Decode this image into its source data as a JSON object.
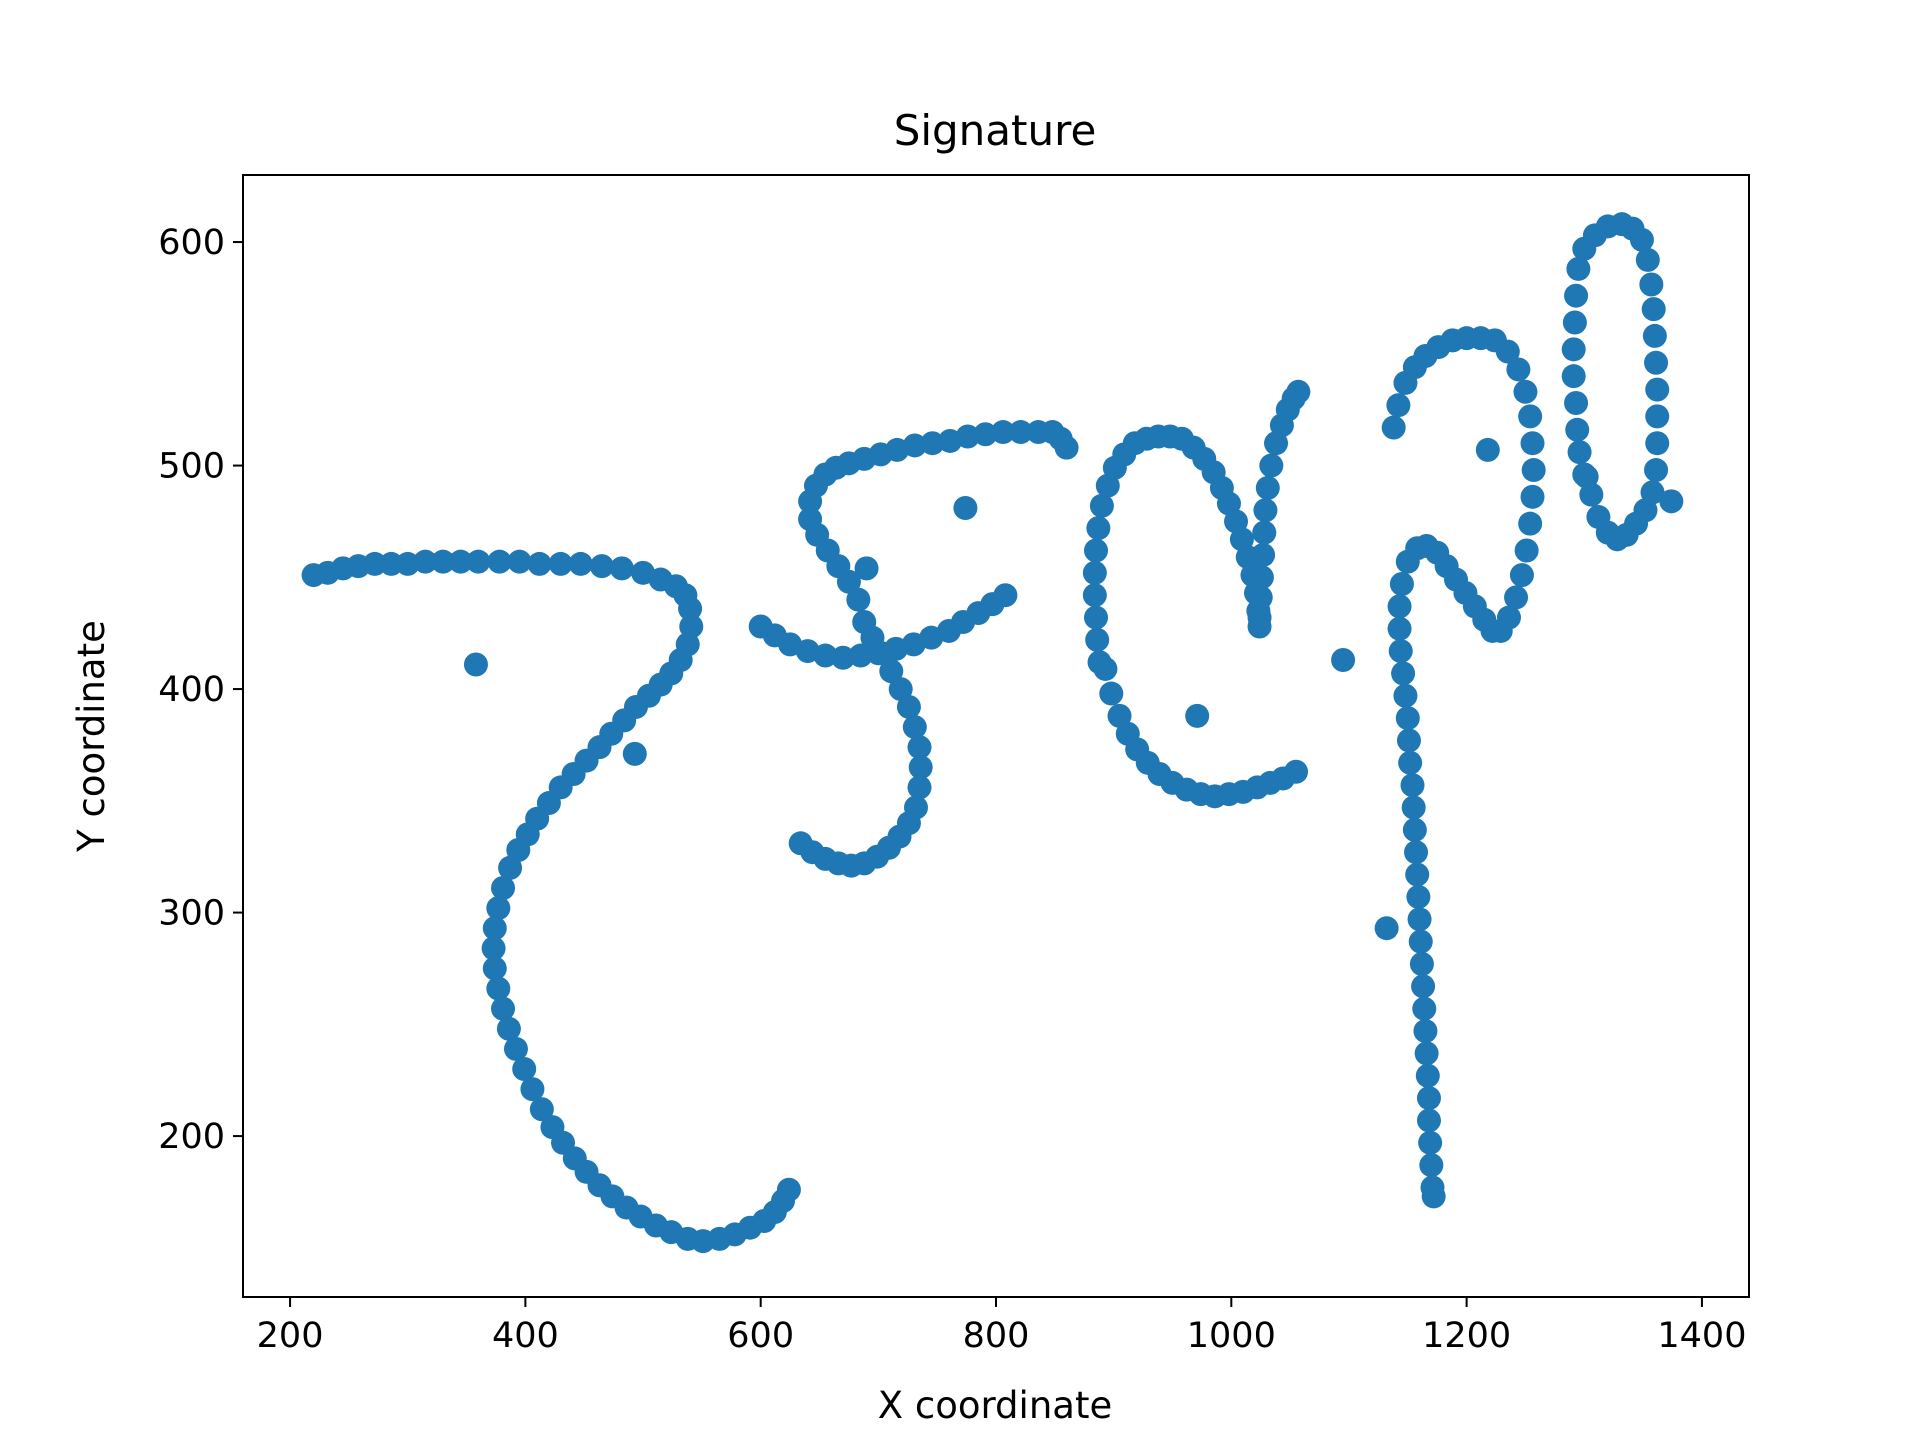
{
  "chart_data": {
    "type": "scatter",
    "title": "Signature",
    "xlabel": "X coordinate",
    "ylabel": "Y coordinate",
    "xlim": [
      160,
      1440
    ],
    "ylim": [
      128,
      630
    ],
    "xticks": [
      200,
      400,
      600,
      800,
      1000,
      1200,
      1400
    ],
    "yticks": [
      200,
      300,
      400,
      500,
      600
    ],
    "grid": false,
    "legend": "none",
    "color": "#1f77b4",
    "series": [
      {
        "points": [
          [
            220,
            451
          ],
          [
            232,
            452
          ],
          [
            245,
            454
          ],
          [
            258,
            455
          ],
          [
            272,
            456
          ],
          [
            286,
            456
          ],
          [
            300,
            456
          ],
          [
            315,
            457
          ],
          [
            330,
            457
          ],
          [
            345,
            457
          ],
          [
            360,
            457
          ],
          [
            378,
            457
          ],
          [
            395,
            457
          ],
          [
            412,
            456
          ],
          [
            430,
            456
          ],
          [
            447,
            456
          ],
          [
            465,
            455
          ],
          [
            482,
            454
          ],
          [
            500,
            452
          ],
          [
            515,
            449
          ],
          [
            528,
            446
          ],
          [
            536,
            442
          ],
          [
            540,
            436
          ],
          [
            541,
            428
          ],
          [
            538,
            420
          ],
          [
            532,
            413
          ],
          [
            524,
            407
          ],
          [
            515,
            402
          ],
          [
            505,
            397
          ],
          [
            494,
            392
          ],
          [
            484,
            386
          ],
          [
            473,
            380
          ],
          [
            463,
            374
          ],
          [
            452,
            368
          ],
          [
            441,
            362
          ],
          [
            430,
            356
          ],
          [
            420,
            349
          ],
          [
            410,
            342
          ],
          [
            402,
            335
          ],
          [
            394,
            328
          ],
          [
            387,
            320
          ],
          [
            381,
            311
          ],
          [
            377,
            302
          ],
          [
            374,
            293
          ],
          [
            373,
            284
          ],
          [
            374,
            275
          ],
          [
            377,
            266
          ],
          [
            381,
            257
          ],
          [
            386,
            248
          ],
          [
            392,
            239
          ],
          [
            399,
            230
          ],
          [
            406,
            221
          ],
          [
            414,
            212
          ],
          [
            423,
            204
          ],
          [
            432,
            197
          ],
          [
            442,
            190
          ],
          [
            452,
            184
          ],
          [
            463,
            178
          ],
          [
            474,
            173
          ],
          [
            486,
            168
          ],
          [
            498,
            164
          ],
          [
            511,
            160
          ],
          [
            524,
            157
          ],
          [
            538,
            154
          ],
          [
            551,
            153
          ],
          [
            565,
            154
          ],
          [
            578,
            156
          ],
          [
            591,
            159
          ],
          [
            603,
            162
          ],
          [
            612,
            166
          ],
          [
            619,
            171
          ],
          [
            624,
            176
          ],
          [
            358,
            411
          ],
          [
            493,
            371
          ],
          [
            600,
            428
          ],
          [
            612,
            424
          ],
          [
            625,
            420
          ],
          [
            640,
            417
          ],
          [
            655,
            415
          ],
          [
            670,
            414
          ],
          [
            685,
            415
          ],
          [
            700,
            416
          ],
          [
            715,
            418
          ],
          [
            730,
            420
          ],
          [
            745,
            423
          ],
          [
            760,
            426
          ],
          [
            772,
            430
          ],
          [
            785,
            434
          ],
          [
            797,
            438
          ],
          [
            808,
            442
          ],
          [
            688,
            430
          ],
          [
            695,
            423
          ],
          [
            703,
            416
          ],
          [
            711,
            408
          ],
          [
            719,
            400
          ],
          [
            726,
            392
          ],
          [
            731,
            383
          ],
          [
            735,
            374
          ],
          [
            736,
            365
          ],
          [
            735,
            356
          ],
          [
            732,
            347
          ],
          [
            726,
            340
          ],
          [
            718,
            334
          ],
          [
            709,
            329
          ],
          [
            699,
            325
          ],
          [
            688,
            322
          ],
          [
            677,
            321
          ],
          [
            666,
            322
          ],
          [
            655,
            324
          ],
          [
            644,
            327
          ],
          [
            634,
            331
          ],
          [
            690,
            454
          ],
          [
            774,
            481
          ],
          [
            683,
            440
          ],
          [
            675,
            448
          ],
          [
            666,
            455
          ],
          [
            657,
            462
          ],
          [
            648,
            469
          ],
          [
            642,
            476
          ],
          [
            642,
            484
          ],
          [
            647,
            491
          ],
          [
            655,
            496
          ],
          [
            664,
            499
          ],
          [
            675,
            501
          ],
          [
            688,
            503
          ],
          [
            702,
            505
          ],
          [
            716,
            507
          ],
          [
            731,
            509
          ],
          [
            746,
            510
          ],
          [
            761,
            511
          ],
          [
            776,
            513
          ],
          [
            791,
            514
          ],
          [
            806,
            515
          ],
          [
            821,
            515
          ],
          [
            836,
            515
          ],
          [
            848,
            515
          ],
          [
            855,
            512
          ],
          [
            860,
            508
          ],
          [
            888,
            412
          ],
          [
            886,
            422
          ],
          [
            885,
            432
          ],
          [
            884,
            442
          ],
          [
            884,
            452
          ],
          [
            885,
            462
          ],
          [
            887,
            472
          ],
          [
            890,
            482
          ],
          [
            895,
            491
          ],
          [
            901,
            499
          ],
          [
            909,
            505
          ],
          [
            918,
            510
          ],
          [
            928,
            512
          ],
          [
            938,
            513
          ],
          [
            948,
            513
          ],
          [
            958,
            512
          ],
          [
            968,
            508
          ],
          [
            977,
            503
          ],
          [
            985,
            497
          ],
          [
            992,
            490
          ],
          [
            998,
            483
          ],
          [
            1004,
            475
          ],
          [
            1009,
            467
          ],
          [
            1014,
            459
          ],
          [
            1018,
            451
          ],
          [
            1021,
            443
          ],
          [
            1023,
            435
          ],
          [
            1024,
            428
          ],
          [
            1024,
            432
          ],
          [
            1025,
            441
          ],
          [
            1026,
            450
          ],
          [
            1027,
            460
          ],
          [
            1028,
            470
          ],
          [
            1029,
            480
          ],
          [
            1031,
            490
          ],
          [
            1034,
            500
          ],
          [
            1038,
            510
          ],
          [
            1043,
            518
          ],
          [
            1048,
            525
          ],
          [
            1053,
            530
          ],
          [
            1057,
            533
          ],
          [
            893,
            409
          ],
          [
            898,
            398
          ],
          [
            905,
            388
          ],
          [
            912,
            380
          ],
          [
            920,
            373
          ],
          [
            929,
            367
          ],
          [
            939,
            362
          ],
          [
            950,
            358
          ],
          [
            962,
            355
          ],
          [
            974,
            353
          ],
          [
            986,
            352
          ],
          [
            998,
            353
          ],
          [
            1010,
            354
          ],
          [
            1022,
            356
          ],
          [
            1033,
            358
          ],
          [
            1044,
            360
          ],
          [
            1055,
            363
          ],
          [
            971,
            388
          ],
          [
            1095,
            413
          ],
          [
            1132,
            293
          ],
          [
            1218,
            507
          ],
          [
            1138,
            517
          ],
          [
            1142,
            527
          ],
          [
            1148,
            537
          ],
          [
            1156,
            544
          ],
          [
            1165,
            549
          ],
          [
            1176,
            553
          ],
          [
            1188,
            556
          ],
          [
            1200,
            557
          ],
          [
            1212,
            557
          ],
          [
            1224,
            556
          ],
          [
            1235,
            551
          ],
          [
            1244,
            543
          ],
          [
            1250,
            533
          ],
          [
            1254,
            522
          ],
          [
            1256,
            510
          ],
          [
            1257,
            498
          ],
          [
            1256,
            486
          ],
          [
            1254,
            474
          ],
          [
            1251,
            462
          ],
          [
            1247,
            451
          ],
          [
            1242,
            441
          ],
          [
            1236,
            432
          ],
          [
            1229,
            426
          ],
          [
            1222,
            426
          ],
          [
            1215,
            431
          ],
          [
            1207,
            437
          ],
          [
            1199,
            443
          ],
          [
            1191,
            449
          ],
          [
            1183,
            455
          ],
          [
            1175,
            461
          ],
          [
            1166,
            464
          ],
          [
            1158,
            463
          ],
          [
            1150,
            457
          ],
          [
            1145,
            447
          ],
          [
            1143,
            437
          ],
          [
            1143,
            427
          ],
          [
            1144,
            417
          ],
          [
            1146,
            407
          ],
          [
            1148,
            397
          ],
          [
            1150,
            387
          ],
          [
            1151,
            377
          ],
          [
            1152,
            367
          ],
          [
            1154,
            357
          ],
          [
            1155,
            347
          ],
          [
            1156,
            337
          ],
          [
            1157,
            327
          ],
          [
            1158,
            317
          ],
          [
            1159,
            307
          ],
          [
            1160,
            297
          ],
          [
            1161,
            287
          ],
          [
            1162,
            277
          ],
          [
            1163,
            267
          ],
          [
            1164,
            257
          ],
          [
            1165,
            247
          ],
          [
            1166,
            237
          ],
          [
            1167,
            227
          ],
          [
            1168,
            217
          ],
          [
            1168,
            207
          ],
          [
            1169,
            197
          ],
          [
            1170,
            187
          ],
          [
            1171,
            177
          ],
          [
            1172,
            173
          ],
          [
            1300,
            496
          ],
          [
            1296,
            506
          ],
          [
            1294,
            516
          ],
          [
            1293,
            528
          ],
          [
            1291,
            540
          ],
          [
            1291,
            552
          ],
          [
            1292,
            564
          ],
          [
            1293,
            576
          ],
          [
            1295,
            588
          ],
          [
            1300,
            597
          ],
          [
            1309,
            603
          ],
          [
            1320,
            607
          ],
          [
            1332,
            608
          ],
          [
            1341,
            606
          ],
          [
            1349,
            601
          ],
          [
            1354,
            592
          ],
          [
            1357,
            581
          ],
          [
            1359,
            570
          ],
          [
            1360,
            558
          ],
          [
            1361,
            546
          ],
          [
            1362,
            534
          ],
          [
            1362,
            522
          ],
          [
            1362,
            510
          ],
          [
            1361,
            498
          ],
          [
            1358,
            488
          ],
          [
            1352,
            480
          ],
          [
            1344,
            474
          ],
          [
            1336,
            469
          ],
          [
            1328,
            467
          ],
          [
            1320,
            470
          ],
          [
            1312,
            477
          ],
          [
            1306,
            487
          ],
          [
            1302,
            495
          ],
          [
            1374,
            484
          ]
        ]
      }
    ]
  }
}
